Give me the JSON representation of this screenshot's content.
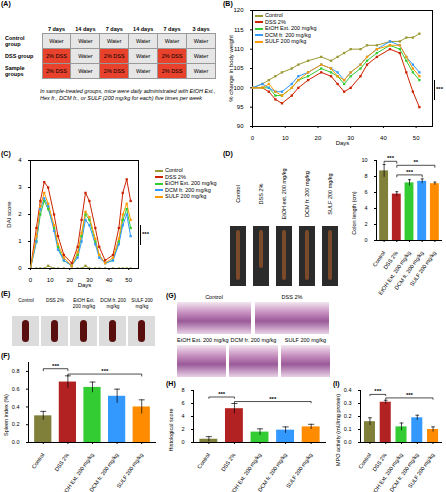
{
  "schematic": {
    "panel": "(A)",
    "header": [
      "7 days",
      "14 days",
      "7 days",
      "14 days",
      "7 days",
      "3 days"
    ],
    "rows": [
      {
        "group": "Control group",
        "cells": [
          "Water",
          "Water",
          "Water",
          "Water",
          "Water",
          "Water"
        ],
        "colors": [
          "#e6e6e6",
          "#e6e6e6",
          "#e6e6e6",
          "#e6e6e6",
          "#e6e6e6",
          "#e6e6e6"
        ]
      },
      {
        "group": "DSS group",
        "cells": [
          "2% DSS",
          "Water",
          "2% DSS",
          "Water",
          "2% DSS",
          "Water"
        ],
        "colors": [
          "#e8412c",
          "#e6e6e6",
          "#e8412c",
          "#e6e6e6",
          "#e8412c",
          "#e6e6e6"
        ]
      },
      {
        "group": "Sample groups",
        "cells": [
          "2% DSS",
          "Water",
          "2% DSS",
          "Water",
          "2% DSS",
          "Water"
        ],
        "colors": [
          "#e8412c",
          "#e6e6e6",
          "#e8412c",
          "#e6e6e6",
          "#e8412c",
          "#e6e6e6"
        ]
      }
    ],
    "note": "In sample-treated groups, mice were daily administrated with EtOH Ext., Hex fr., DCM fr., or SULF (200 mg/kg for each) five times per week"
  },
  "colon_photos": {
    "panel": "(D)",
    "labels": [
      "Control",
      "DSS 2%",
      "EtOH ext. 200 mg/kg",
      "DCM fr. 200 mg/kg",
      "SULF 200 mg/kg"
    ]
  },
  "spleen_photos": {
    "panel": "(E)",
    "labels": [
      "Control",
      "DSS 2%",
      "EtOH Ext. 200 mg/kg",
      "DCM fr. 200 mg/kg",
      "SULF 200 mg/kg"
    ]
  },
  "histology": {
    "panel": "(G)",
    "labels": [
      "Control",
      "DSS 2%",
      "EtOH Ext. 200 mg/kg",
      "DCM fr. 200 mg/kg",
      "SULF 200 mg/kg"
    ]
  },
  "chart_data": [
    {
      "panel": "(B)",
      "type": "line",
      "x_label": "Days",
      "y_label": "% change in body weight",
      "x": [
        0,
        3,
        5,
        7,
        9,
        12,
        14,
        17,
        21,
        24,
        26,
        28,
        30,
        33,
        35,
        38,
        42,
        45,
        47,
        49,
        51
      ],
      "xlim": [
        0,
        55
      ],
      "xticks": [
        0,
        10,
        20,
        30,
        40,
        50
      ],
      "ylim": [
        90,
        120
      ],
      "yticks": [
        90,
        95,
        100,
        105,
        110,
        115,
        120
      ],
      "marker": "square",
      "legend": "top-left",
      "annotations": [
        {
          "text": "***"
        }
      ],
      "series": [
        {
          "name": "Control",
          "color": "#999933",
          "values": [
            100,
            101,
            102,
            103,
            104,
            105,
            106,
            107,
            108,
            107,
            108,
            109,
            110,
            110,
            111,
            111,
            112,
            112,
            113,
            113,
            114
          ]
        },
        {
          "name": "DSS 2%",
          "color": "#cc2200",
          "values": [
            100,
            100,
            99,
            97,
            96,
            98,
            100,
            102,
            104,
            103,
            101,
            99,
            100,
            103,
            106,
            108,
            110,
            109,
            104,
            99,
            95
          ]
        },
        {
          "name": "EtOH Ext. 200 mg/kg",
          "color": "#33cc33",
          "values": [
            100,
            100,
            100,
            98,
            98,
            100,
            102,
            103,
            105,
            104,
            103,
            101,
            103,
            105,
            107,
            109,
            111,
            110,
            107,
            104,
            102
          ]
        },
        {
          "name": "DCM fr. 200 mg/kg",
          "color": "#3399ff",
          "values": [
            100,
            101,
            100,
            99,
            99,
            101,
            103,
            104,
            106,
            105,
            104,
            102,
            104,
            106,
            108,
            110,
            112,
            111,
            108,
            106,
            104
          ]
        },
        {
          "name": "SULF 200 mg/kg",
          "color": "#ff9900",
          "values": [
            100,
            100,
            101,
            99,
            98,
            100,
            102,
            104,
            106,
            105,
            103,
            102,
            104,
            106,
            108,
            110,
            111,
            111,
            108,
            105,
            103
          ]
        }
      ]
    },
    {
      "panel": "(C)",
      "type": "line",
      "x_label": "Days",
      "y_label": "DAI score",
      "x": [
        0,
        3,
        5,
        7,
        9,
        12,
        14,
        17,
        21,
        24,
        26,
        28,
        30,
        33,
        35,
        38,
        42,
        45,
        47,
        49,
        51
      ],
      "xlim": [
        0,
        55
      ],
      "xticks": [
        0,
        10,
        20,
        30,
        40,
        50
      ],
      "ylim": [
        0,
        4
      ],
      "yticks": [
        0,
        1,
        2,
        3,
        4
      ],
      "marker": "square",
      "legend": "right",
      "annotations": [
        {
          "text": "***"
        }
      ],
      "series": [
        {
          "name": "Control",
          "color": "#999933",
          "values": [
            0,
            0,
            0,
            0,
            0.1,
            0,
            0,
            0,
            0,
            0,
            0,
            0.1,
            0,
            0,
            0,
            0,
            0,
            0,
            0,
            0,
            0
          ]
        },
        {
          "name": "DSS 2%",
          "color": "#cc2200",
          "values": [
            0,
            1.5,
            2.5,
            3.2,
            3.0,
            2.0,
            1.2,
            0.5,
            0.2,
            0.8,
            1.8,
            2.8,
            2.5,
            1.5,
            0.8,
            0.3,
            0.5,
            1.5,
            2.8,
            3.3,
            2.5
          ]
        },
        {
          "name": "EtOH Ext. 200 mg/kg",
          "color": "#33cc33",
          "values": [
            0,
            1.0,
            2.0,
            2.5,
            2.2,
            1.5,
            0.8,
            0.3,
            0.1,
            0.5,
            1.2,
            2.0,
            1.8,
            1.0,
            0.5,
            0.2,
            0.3,
            1.0,
            1.8,
            2.2,
            1.5
          ]
        },
        {
          "name": "DCM fr. 200 mg/kg",
          "color": "#3399ff",
          "values": [
            0,
            1.0,
            2.2,
            2.6,
            2.3,
            1.4,
            0.7,
            0.3,
            0.1,
            0.4,
            1.0,
            1.8,
            1.6,
            0.9,
            0.4,
            0.2,
            0.3,
            0.9,
            1.6,
            2.0,
            1.2
          ]
        },
        {
          "name": "SULF 200 mg/kg",
          "color": "#ff9900",
          "values": [
            0,
            1.2,
            2.3,
            2.8,
            2.4,
            1.6,
            0.9,
            0.4,
            0.1,
            0.6,
            1.3,
            2.1,
            1.9,
            1.1,
            0.5,
            0.2,
            0.4,
            1.1,
            2.0,
            2.4,
            1.8
          ]
        }
      ]
    },
    {
      "type": "bar",
      "y_label": "Colon length (cm)",
      "categories": [
        "Control",
        "DSS 2%",
        "EtOH Ext. 200 mg/kg",
        "DCM fr. 200 mg/kg",
        "SULF 200 mg/kg"
      ],
      "values": [
        8.7,
        5.8,
        7.2,
        7.4,
        7.1
      ],
      "errors": [
        0.8,
        0.3,
        0.4,
        0.3,
        0.2
      ],
      "colors": [
        "#80803a",
        "#b22222",
        "#33cc33",
        "#3399ff",
        "#ff8c00"
      ],
      "ylim": [
        0,
        10
      ],
      "yticks": [
        0,
        2,
        4,
        6,
        8,
        10
      ],
      "significance": [
        {
          "from": "Control",
          "to": "DSS 2%",
          "y": 9.9,
          "label": "***"
        },
        {
          "from": "DSS 2%",
          "to": "DCM fr. 200 mg/kg",
          "y": 8.2,
          "label": "***"
        },
        {
          "from": "DSS 2%",
          "to": "SULF 200 mg/kg",
          "y": 9.4,
          "label": "**"
        }
      ]
    },
    {
      "panel": "(F)",
      "type": "bar",
      "y_label": "Spleen index (%)",
      "categories": [
        "Control",
        "DSS 2%",
        "EtOH Ext. 200 mg/kg",
        "DCM fr. 200 mg/kg",
        "SULF 200 mg/kg"
      ],
      "values": [
        0.3,
        0.68,
        0.62,
        0.52,
        0.4
      ],
      "errors": [
        0.05,
        0.07,
        0.06,
        0.08,
        0.08
      ],
      "colors": [
        "#80803a",
        "#b22222",
        "#33cc33",
        "#3399ff",
        "#ff8c00"
      ],
      "ylim": [
        0,
        0.9
      ],
      "yticks": [
        {
          "value": 0,
          "label": "0.0"
        },
        {
          "value": 0.2,
          "label": "0.2"
        },
        {
          "value": 0.4,
          "label": "0.4"
        },
        {
          "value": 0.6,
          "label": "0.6"
        },
        {
          "value": 0.8,
          "label": "0.8"
        }
      ],
      "significance": [
        {
          "from": "Control",
          "to": "DSS 2%",
          "y": 0.83,
          "label": "***"
        },
        {
          "from": "DSS 2%",
          "to": "SULF 200 mg/kg",
          "y": 0.77,
          "label": "***"
        }
      ]
    },
    {
      "panel": "(H)",
      "type": "bar",
      "y_label": "Histological score",
      "categories": [
        "Control",
        "DSS 2%",
        "EtOH Ext. 200 mg/kg",
        "DCM fr. 200 mg/kg",
        "SULF 200 mg/kg"
      ],
      "values": [
        0.5,
        5.2,
        1.6,
        1.9,
        2.4
      ],
      "errors": [
        0.4,
        0.8,
        0.5,
        0.5,
        0.4
      ],
      "colors": [
        "#80803a",
        "#b22222",
        "#33cc33",
        "#3399ff",
        "#ff8c00"
      ],
      "ylim": [
        0,
        8
      ],
      "yticks": [
        0,
        2,
        4,
        6,
        8
      ],
      "significance": [
        {
          "from": "Control",
          "to": "DSS 2%",
          "y": 7.0,
          "label": "***"
        },
        {
          "from": "DSS 2%",
          "to": "SULF 200 mg/kg",
          "y": 6.3,
          "label": "***"
        }
      ]
    },
    {
      "panel": "(I)",
      "type": "bar",
      "y_label": "MPO activity (mU/mg protein)",
      "categories": [
        "Control",
        "DSS 2%",
        "EtOH Ext. 200 mg/kg",
        "DCM fr. 200 mg/kg",
        "SULF 200 mg/kg"
      ],
      "values": [
        0.16,
        0.31,
        0.12,
        0.19,
        0.1
      ],
      "errors": [
        0.03,
        0.015,
        0.03,
        0.02,
        0.02
      ],
      "colors": [
        "#80803a",
        "#b22222",
        "#33cc33",
        "#3399ff",
        "#ff8c00"
      ],
      "ylim": [
        0,
        0.4
      ],
      "yticks": [
        {
          "value": 0,
          "label": "0.0"
        },
        {
          "value": 0.1,
          "label": "0.1"
        },
        {
          "value": 0.2,
          "label": "0.2"
        },
        {
          "value": 0.3,
          "label": "0.3"
        },
        {
          "value": 0.4,
          "label": "0.4"
        }
      ],
      "significance": [
        {
          "from": "Control",
          "to": "DSS 2%",
          "y": 0.37,
          "label": "***"
        },
        {
          "from": "DSS 2%",
          "to": "SULF 200 mg/kg",
          "y": 0.343,
          "label": "***"
        }
      ]
    }
  ]
}
